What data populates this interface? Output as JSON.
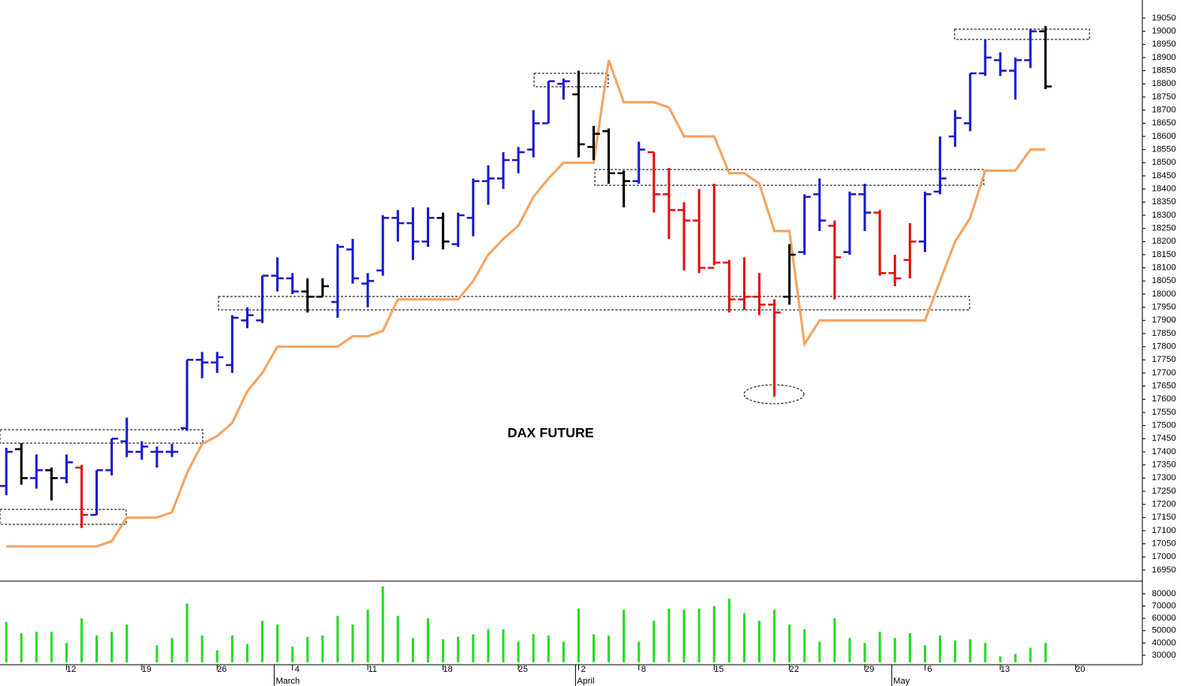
{
  "chart_data": {
    "type": "ohlc",
    "title": "DAX FUTURE",
    "categories": [
      null,
      null,
      null,
      null,
      "12",
      null,
      null,
      null,
      null,
      "19",
      null,
      null,
      null,
      null,
      "26",
      null,
      null,
      null,
      null,
      "4",
      null,
      null,
      null,
      null,
      "11",
      null,
      null,
      null,
      null,
      "18",
      null,
      null,
      null,
      null,
      "25",
      null,
      null,
      null,
      "2",
      null,
      null,
      null,
      "8",
      null,
      null,
      null,
      null,
      "15",
      null,
      null,
      null,
      null,
      "22",
      null,
      null,
      null,
      null,
      "29",
      null,
      null,
      null,
      "6",
      null,
      null,
      null,
      null,
      "13",
      null,
      null,
      null,
      null,
      "20"
    ],
    "month_categories": [
      null,
      null,
      null,
      null,
      null,
      null,
      null,
      null,
      null,
      null,
      null,
      null,
      null,
      null,
      null,
      null,
      null,
      null,
      "March",
      null,
      null,
      null,
      null,
      null,
      null,
      null,
      null,
      null,
      null,
      null,
      null,
      null,
      null,
      null,
      null,
      null,
      null,
      null,
      "April",
      null,
      null,
      null,
      null,
      null,
      null,
      null,
      null,
      null,
      null,
      null,
      null,
      null,
      null,
      null,
      null,
      null,
      null,
      null,
      null,
      "May",
      null,
      null,
      null,
      null,
      null,
      null,
      null,
      null,
      null,
      null,
      null,
      null
    ],
    "open": [
      17270,
      17410,
      17300,
      17330,
      17300,
      17340,
      17160,
      17330,
      17440,
      17400,
      17400,
      17400,
      17490,
      17750,
      17740,
      17730,
      17900,
      17900,
      18070,
      18060,
      18010,
      17990,
      17970,
      18170,
      18040,
      18090,
      18290,
      18270,
      18200,
      18290,
      18190,
      18290,
      18430,
      18440,
      18510,
      18550,
      18650,
      18800,
      18760,
      18560,
      18620,
      18460,
      18430,
      18540,
      18380,
      18320,
      18280,
      18100,
      18120,
      17980,
      17990,
      17960,
      17990,
      18160,
      18380,
      18260,
      18160,
      18380,
      18310,
      18080,
      18130,
      18200,
      18390,
      18600,
      18650,
      18840,
      18890,
      18850,
      18890,
      19000,
      null,
      null
    ],
    "high": [
      17415,
      17433,
      17390,
      17340,
      17390,
      17350,
      17330,
      17450,
      17530,
      17440,
      17420,
      17430,
      17750,
      17780,
      17780,
      17920,
      17950,
      18070,
      18140,
      18080,
      18060,
      18060,
      18190,
      18210,
      18080,
      18300,
      18320,
      18330,
      18330,
      18310,
      18310,
      18440,
      18490,
      18540,
      18560,
      18700,
      18810,
      18820,
      18850,
      18640,
      18630,
      18470,
      18580,
      18540,
      18480,
      18350,
      18400,
      18420,
      18130,
      18140,
      18080,
      17980,
      18190,
      18380,
      18440,
      18280,
      18390,
      18420,
      18320,
      18150,
      18270,
      18390,
      18600,
      18700,
      18840,
      18970,
      18920,
      18900,
      19010,
      19020,
      null,
      null
    ],
    "low": [
      17235,
      17275,
      17260,
      17215,
      17280,
      17110,
      17160,
      17310,
      17380,
      17370,
      17340,
      17380,
      17480,
      17680,
      17700,
      17700,
      17870,
      17890,
      18010,
      18000,
      17930,
      17990,
      17910,
      18040,
      17950,
      18070,
      18200,
      18130,
      18180,
      18170,
      18180,
      18220,
      18340,
      18400,
      18460,
      18520,
      18650,
      18740,
      18520,
      18510,
      18420,
      18330,
      18420,
      18310,
      18210,
      18090,
      18080,
      18110,
      17930,
      17940,
      17920,
      17610,
      17960,
      18150,
      18240,
      17980,
      18150,
      18240,
      18070,
      18030,
      18060,
      18160,
      18380,
      18560,
      18620,
      18830,
      18830,
      18740,
      18860,
      18780,
      null,
      null
    ],
    "close": [
      17400,
      17300,
      17330,
      17300,
      17360,
      17160,
      17330,
      17450,
      17400,
      17420,
      17400,
      17400,
      17750,
      17740,
      17760,
      17910,
      17920,
      18070,
      18060,
      18010,
      17990,
      18030,
      18180,
      18060,
      18050,
      18290,
      18270,
      18200,
      18290,
      18200,
      18300,
      18430,
      18440,
      18510,
      18540,
      18650,
      18810,
      18810,
      18570,
      18610,
      18460,
      18430,
      18550,
      18380,
      18320,
      18280,
      18100,
      18120,
      17980,
      17990,
      17960,
      17930,
      18150,
      18370,
      18280,
      18140,
      18380,
      18310,
      18080,
      18060,
      18200,
      18380,
      18440,
      18670,
      18840,
      18900,
      18850,
      18890,
      19000,
      18790,
      null,
      null
    ],
    "bar_colors": [
      "#1a1acc",
      "#000000",
      "#1a1acc",
      "#000000",
      "#1a1acc",
      "#e01010",
      "#1a1acc",
      "#1a1acc",
      "#1a1acc",
      "#1a1acc",
      "#1a1acc",
      "#1a1acc",
      "#1a1acc",
      "#1a1acc",
      "#1a1acc",
      "#1a1acc",
      "#1a1acc",
      "#1a1acc",
      "#1a1acc",
      "#1a1acc",
      "#000000",
      "#000000",
      "#1a1acc",
      "#1a1acc",
      "#1a1acc",
      "#1a1acc",
      "#1a1acc",
      "#1a1acc",
      "#1a1acc",
      "#000000",
      "#1a1acc",
      "#1a1acc",
      "#1a1acc",
      "#1a1acc",
      "#1a1acc",
      "#1a1acc",
      "#1a1acc",
      "#1a1acc",
      "#000000",
      "#000000",
      "#000000",
      "#000000",
      "#1a1acc",
      "#e01010",
      "#e01010",
      "#e01010",
      "#e01010",
      "#e01010",
      "#e01010",
      "#e01010",
      "#e01010",
      "#e01010",
      "#000000",
      "#1a1acc",
      "#1a1acc",
      "#e01010",
      "#1a1acc",
      "#1a1acc",
      "#e01010",
      "#e01010",
      "#e01010",
      "#1a1acc",
      "#1a1acc",
      "#1a1acc",
      "#1a1acc",
      "#1a1acc",
      "#1a1acc",
      "#1a1acc",
      "#1a1acc",
      "#000000",
      null,
      null
    ],
    "stop": {
      "color": "#f7a25e",
      "values": [
        17040,
        17040,
        17040,
        17040,
        17040,
        17040,
        17040,
        17060,
        17150,
        17150,
        17150,
        17170,
        17320,
        17430,
        17460,
        17510,
        17630,
        17700,
        17800,
        17800,
        17800,
        17800,
        17800,
        17840,
        17840,
        17860,
        17980,
        17980,
        17980,
        17980,
        17980,
        18050,
        18150,
        18210,
        18260,
        18370,
        18440,
        18500,
        18500,
        18500,
        18890,
        18730,
        18730,
        18730,
        18710,
        18600,
        18600,
        18600,
        18460,
        18460,
        18420,
        18240,
        18240,
        17810,
        17900,
        17900,
        17900,
        17900,
        17900,
        17900,
        17900,
        17900,
        18050,
        18200,
        18290,
        18470,
        18470,
        18470,
        18550,
        18550,
        null,
        null
      ]
    },
    "ylim": [
      16908,
      19119
    ],
    "yticks": [
      16950,
      17000,
      17050,
      17100,
      17150,
      17200,
      17250,
      17300,
      17350,
      17400,
      17450,
      17500,
      17550,
      17600,
      17650,
      17700,
      17750,
      17800,
      17850,
      17900,
      17950,
      18000,
      18050,
      18100,
      18150,
      18200,
      18250,
      18300,
      18350,
      18400,
      18450,
      18500,
      18550,
      18600,
      18650,
      18700,
      18750,
      18800,
      18850,
      18900,
      18950,
      19000,
      19050
    ],
    "volume": {
      "color": "#22dd22",
      "values": [
        57000,
        48000,
        49000,
        49000,
        40000,
        60000,
        46000,
        49000,
        55000,
        null,
        38000,
        44000,
        72000,
        46000,
        34000,
        46000,
        39000,
        58000,
        55000,
        37000,
        45000,
        46000,
        62000,
        55000,
        67000,
        86000,
        62000,
        44000,
        60000,
        43000,
        45000,
        47000,
        51000,
        51000,
        41000,
        47000,
        46000,
        41000,
        68000,
        47000,
        46000,
        67000,
        41000,
        58000,
        68000,
        67000,
        68000,
        70000,
        76000,
        64000,
        58000,
        67000,
        55000,
        51000,
        41000,
        60000,
        44000,
        40000,
        49000,
        44000,
        48000,
        38000,
        46000,
        42000,
        43000,
        40000,
        29000,
        31000,
        36000,
        40000,
        null,
        null
      ],
      "ylim": [
        24200,
        89600
      ],
      "yticks": [
        30000,
        40000,
        50000,
        60000,
        70000,
        80000
      ]
    }
  }
}
